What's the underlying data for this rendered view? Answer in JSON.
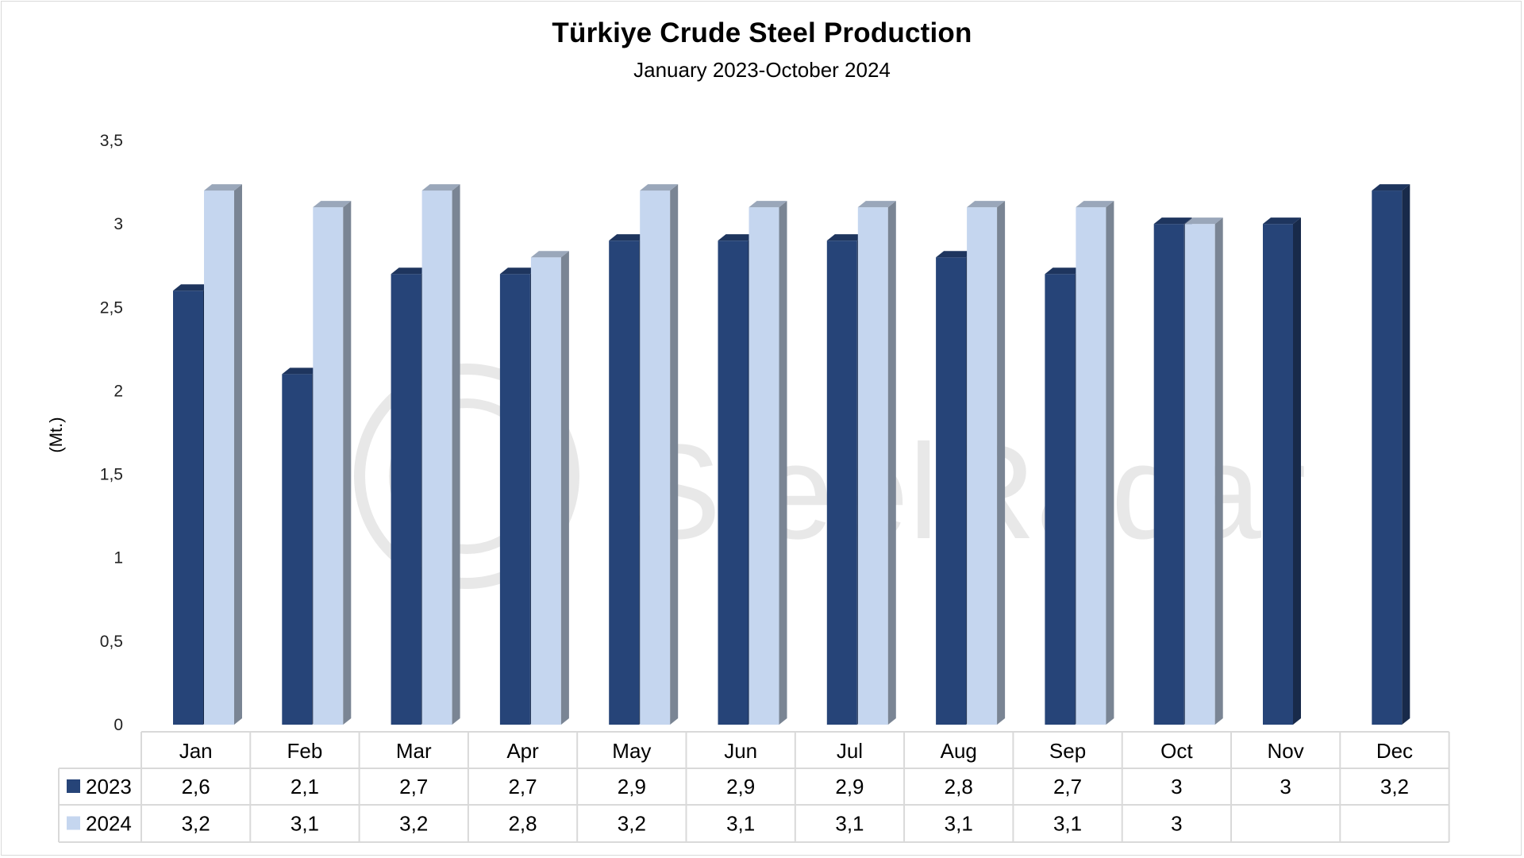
{
  "chart_data": {
    "type": "bar",
    "title": "Türkiye Crude Steel Production",
    "subtitle": "January 2023-October 2024",
    "ylabel": "(Mt.)",
    "xlabel": "",
    "ylim": [
      0,
      3.5
    ],
    "yticks": [
      "0",
      "0,5",
      "1",
      "1,5",
      "2",
      "2,5",
      "3",
      "3,5"
    ],
    "ytick_values": [
      0,
      0.5,
      1,
      1.5,
      2,
      2.5,
      3,
      3.5
    ],
    "categories": [
      "Jan",
      "Feb",
      "Mar",
      "Apr",
      "May",
      "Jun",
      "Jul",
      "Aug",
      "Sep",
      "Oct",
      "Nov",
      "Dec"
    ],
    "series": [
      {
        "name": "2023",
        "color": "#264478",
        "values": [
          2.6,
          2.1,
          2.7,
          2.7,
          2.9,
          2.9,
          2.9,
          2.8,
          2.7,
          3,
          3,
          3.2
        ],
        "labels": [
          "2,6",
          "2,1",
          "2,7",
          "2,7",
          "2,9",
          "2,9",
          "2,9",
          "2,8",
          "2,7",
          "3",
          "3",
          "3,2"
        ]
      },
      {
        "name": "2024",
        "color": "#c5d6ef",
        "values": [
          3.2,
          3.1,
          3.2,
          2.8,
          3.2,
          3.1,
          3.1,
          3.1,
          3.1,
          3,
          null,
          null
        ],
        "labels": [
          "3,2",
          "3,1",
          "3,2",
          "2,8",
          "3,2",
          "3,1",
          "3,1",
          "3,1",
          "3,1",
          "3",
          "",
          ""
        ]
      }
    ],
    "data_table": true,
    "grid": false,
    "watermark": "SteelRadar"
  }
}
